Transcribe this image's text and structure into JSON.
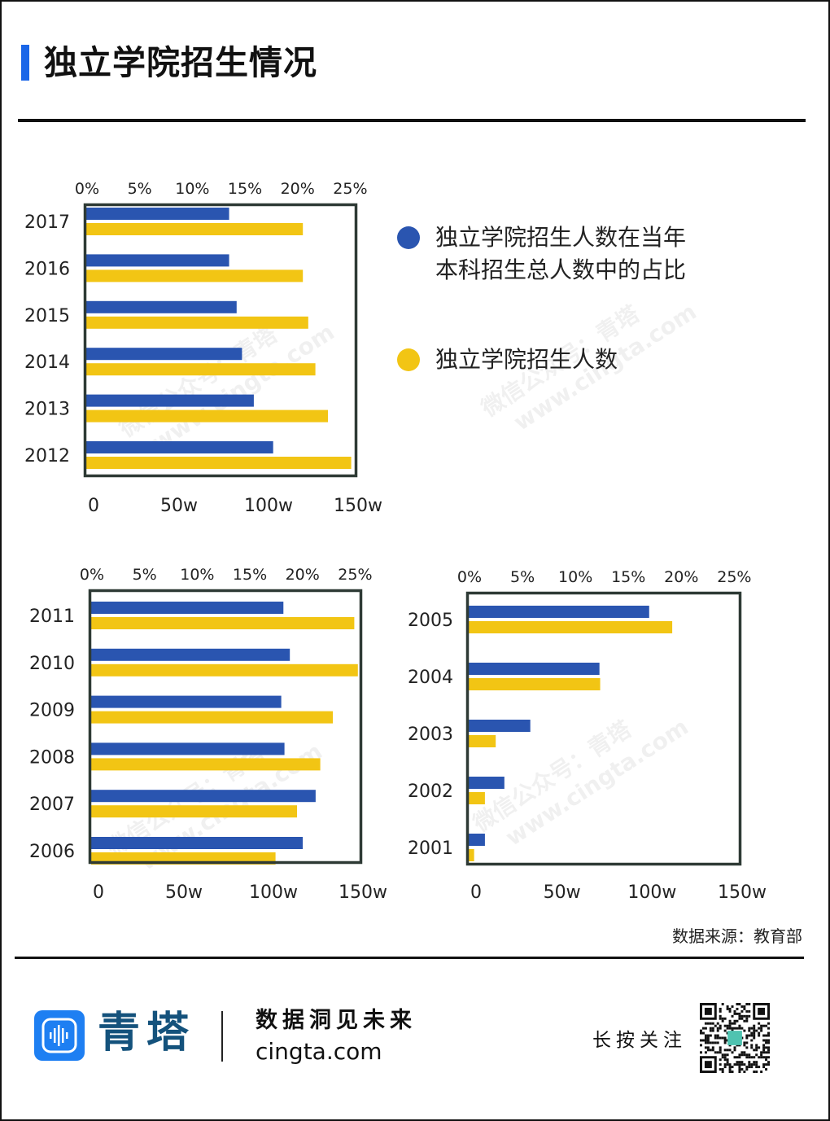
{
  "title": "独立学院招生情况",
  "colors": {
    "blue": "#2a55b0",
    "yellow": "#f2c514",
    "accent": "#1a66e8",
    "frame": "#2e3a35"
  },
  "legend": [
    {
      "label_line1": "独立学院招生人数在当年",
      "label_line2": "本科招生总人数中的占比",
      "color": "#2a55b0"
    },
    {
      "label_line1": "独立学院招生人数",
      "label_line2": "",
      "color": "#f2c514"
    }
  ],
  "source": "数据来源：教育部",
  "footer": {
    "brand": "青塔",
    "slogan": "数据洞见未来",
    "site": "cingta.com",
    "follow": "长按关注"
  },
  "watermark": {
    "line1": "微信公众号：青塔",
    "line2": "www.cingta.com"
  },
  "chart_data": [
    {
      "type": "bar",
      "orientation": "horizontal",
      "categories": [
        "2017",
        "2016",
        "2015",
        "2014",
        "2013",
        "2012"
      ],
      "series": [
        {
          "name": "独立学院招生人数在当年本科招生总人数中的占比",
          "axis": "top",
          "unit": "%",
          "values": [
            13.3,
            13.3,
            14.0,
            14.5,
            15.6,
            17.4
          ]
        },
        {
          "name": "独立学院招生人数",
          "axis": "bottom",
          "unit": "w",
          "values": [
            121,
            121,
            124,
            128,
            135,
            148
          ]
        }
      ],
      "top_axis": {
        "ticks": [
          "0%",
          "5%",
          "10%",
          "15%",
          "20%",
          "25%"
        ],
        "lim": [
          0,
          25
        ]
      },
      "bottom_axis": {
        "ticks": [
          "0",
          "50w",
          "100w",
          "150w"
        ],
        "lim": [
          0,
          150
        ]
      }
    },
    {
      "type": "bar",
      "orientation": "horizontal",
      "categories": [
        "2011",
        "2010",
        "2009",
        "2008",
        "2007",
        "2006"
      ],
      "series": [
        {
          "name": "独立学院招生人数在当年本科招生总人数中的占比",
          "axis": "top",
          "unit": "%",
          "values": [
            17.9,
            18.5,
            17.7,
            18.0,
            20.9,
            19.7
          ]
        },
        {
          "name": "独立学院招生人数",
          "axis": "bottom",
          "unit": "w",
          "values": [
            147,
            149,
            135,
            128,
            115,
            103
          ]
        }
      ],
      "top_axis": {
        "ticks": [
          "0%",
          "5%",
          "10%",
          "15%",
          "20%",
          "25%"
        ],
        "lim": [
          0,
          25
        ]
      },
      "bottom_axis": {
        "ticks": [
          "0",
          "50w",
          "100w",
          "150w"
        ],
        "lim": [
          0,
          150
        ]
      }
    },
    {
      "type": "bar",
      "orientation": "horizontal",
      "categories": [
        "2005",
        "2004",
        "2003",
        "2002",
        "2001"
      ],
      "series": [
        {
          "name": "独立学院招生人数在当年本科招生总人数中的占比",
          "axis": "top",
          "unit": "%",
          "values": [
            16.7,
            12.1,
            5.7,
            3.3,
            1.5
          ]
        },
        {
          "name": "独立学院招生人数",
          "axis": "bottom",
          "unit": "w",
          "values": [
            113,
            73,
            15,
            9,
            3
          ]
        }
      ],
      "top_axis": {
        "ticks": [
          "0%",
          "5%",
          "10%",
          "15%",
          "20%",
          "25%"
        ],
        "lim": [
          0,
          25
        ]
      },
      "bottom_axis": {
        "ticks": [
          "0",
          "50w",
          "100w",
          "150w"
        ],
        "lim": [
          0,
          150
        ]
      }
    }
  ]
}
